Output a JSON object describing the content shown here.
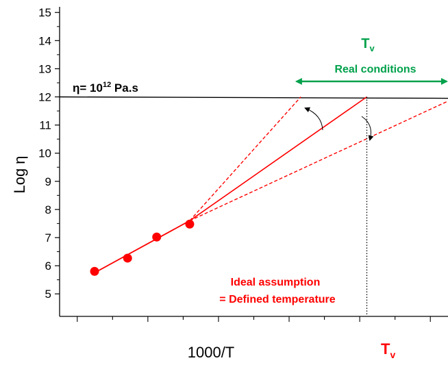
{
  "chart_data": {
    "type": "scatter",
    "xlabel": "1000/T",
    "ylabel": "Log η",
    "ylim": [
      4.2,
      15.2
    ],
    "xlim": [
      0,
      1
    ],
    "yticks": [
      5,
      6,
      7,
      8,
      9,
      10,
      11,
      12,
      13,
      14,
      15
    ],
    "x_minor_tick_count": 11,
    "x_major_tick_every": 2,
    "grid": false,
    "colors": {
      "axis": "#000000",
      "data": "#ff0000",
      "green": "#00a14b",
      "line": "#000000"
    },
    "points": [
      {
        "x": 0.09,
        "y": 5.8
      },
      {
        "x": 0.175,
        "y": 6.27
      },
      {
        "x": 0.25,
        "y": 7.02
      },
      {
        "x": 0.335,
        "y": 7.48
      }
    ],
    "fit_line": {
      "x1": 0.09,
      "y1": 5.75,
      "x2": 0.335,
      "y2": 7.6
    },
    "main_line": {
      "x1": 0.335,
      "y1": 7.6,
      "x2": 0.791,
      "y2": 12.0
    },
    "dashed_upper": {
      "x1": 0.335,
      "y1": 7.6,
      "x2": 0.621,
      "y2": 12.0
    },
    "dashed_lower": {
      "x1": 0.335,
      "y1": 7.6,
      "x2": 1.0,
      "y2": 11.85
    },
    "reference_line": {
      "y": 12.0,
      "y_end": 11.95
    },
    "tv_marker_x": 0.791,
    "real_conditions_arrow": {
      "x1": 0.61,
      "x2": 1.0,
      "y": 12.55
    },
    "annotations": {
      "viscosity_label_eta": "η= 10",
      "viscosity_label_exp": "12",
      "viscosity_label_unit": " Pa.s",
      "tv_top_main": "T",
      "tv_top_sub": "v",
      "real_conditions": "Real conditions",
      "ideal_line1": "Ideal assumption",
      "ideal_line2": "= Defined temperature",
      "tv_bottom_main": "T",
      "tv_bottom_sub": "v"
    }
  }
}
